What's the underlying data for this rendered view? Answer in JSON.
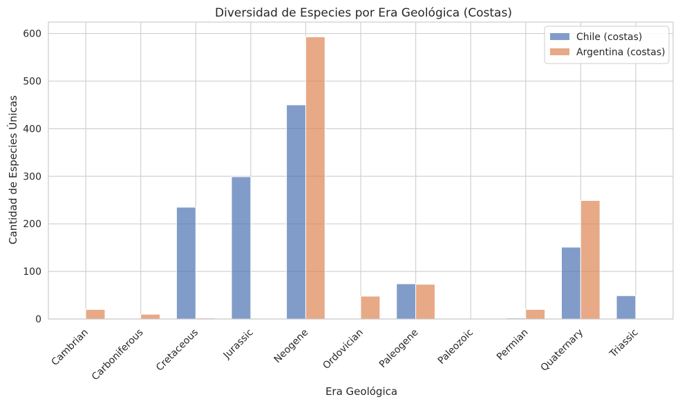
{
  "chart_data": {
    "type": "bar",
    "title": "Diversidad de Especies por Era Geológica (Costas)",
    "xlabel": "Era Geológica",
    "ylabel": "Cantidad de Especies Únicas",
    "categories": [
      "Cambrian",
      "Carboniferous",
      "Cretaceous",
      "Jurassic",
      "Neogene",
      "Ordovician",
      "Paleogene",
      "Paleozoic",
      "Permian",
      "Quaternary",
      "Triassic"
    ],
    "series": [
      {
        "name": "Chile (costas)",
        "color": "#4c72b0",
        "values": [
          0,
          0,
          235,
          299,
          450,
          0,
          74,
          0,
          2,
          151,
          49
        ]
      },
      {
        "name": "Argentina (costas)",
        "color": "#dd8452",
        "values": [
          20,
          10,
          2,
          0,
          593,
          48,
          73,
          0,
          20,
          249,
          0
        ]
      }
    ],
    "ylim": [
      0,
      624
    ],
    "yticks": [
      0,
      100,
      200,
      300,
      400,
      500,
      600
    ],
    "grid": true,
    "legend_position": "top-right"
  }
}
